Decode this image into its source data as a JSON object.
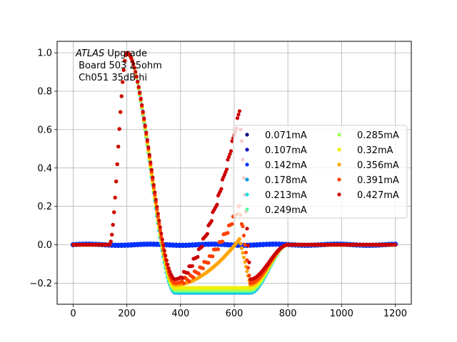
{
  "chart_data": {
    "type": "scatter",
    "title": "",
    "xlabel": "",
    "ylabel": "",
    "xlim": [
      -60,
      1260
    ],
    "ylim": [
      -0.31,
      1.06
    ],
    "grid": true,
    "legend_position": "center-right",
    "legend_columns": 2,
    "annotation": {
      "italic": "ATLAS",
      "line1_rest": " Upgrade",
      "line2": " Board 503 25ohm",
      "line3": " Ch051 35dB hi"
    },
    "x_ticks": [
      0,
      200,
      400,
      600,
      800,
      1000,
      1200
    ],
    "x_tick_labels": [
      "0",
      "200",
      "400",
      "600",
      "800",
      "1000",
      "1200"
    ],
    "y_ticks": [
      -0.2,
      0.0,
      0.2,
      0.4,
      0.6,
      0.8,
      1.0
    ],
    "y_tick_labels": [
      "−0.2",
      "0.0",
      "0.2",
      "0.4",
      "0.6",
      "0.8",
      "1.0"
    ],
    "series": [
      {
        "name": "0.071mA",
        "color": "#00007f",
        "kind": "flat",
        "bump": 0.0,
        "trough": 0.0
      },
      {
        "name": "0.107mA",
        "color": "#0000c8",
        "kind": "flat",
        "bump": 0.0,
        "trough": 0.0
      },
      {
        "name": "0.142mA",
        "color": "#0032ff",
        "kind": "flat",
        "bump": 0.0,
        "trough": 0.0
      },
      {
        "name": "0.178mA",
        "color": "#009ce6",
        "kind": "pulse",
        "bump": 0.0,
        "trough": -0.25
      },
      {
        "name": "0.213mA",
        "color": "#12e0e0",
        "kind": "pulse",
        "bump": 0.0,
        "trough": -0.245
      },
      {
        "name": "0.249mA",
        "color": "#5affa0",
        "kind": "pulse",
        "bump": 0.0,
        "trough": -0.24
      },
      {
        "name": "0.285mA",
        "color": "#a0ff5a",
        "kind": "pulse",
        "bump": 0.0,
        "trough": -0.235
      },
      {
        "name": "0.32mA",
        "color": "#f0f000",
        "kind": "pulse",
        "bump": 0.0,
        "trough": -0.225
      },
      {
        "name": "0.356mA",
        "color": "#ffa500",
        "kind": "pulse",
        "bump": 0.03,
        "trough": -0.21
      },
      {
        "name": "0.391mA",
        "color": "#ff4000",
        "kind": "pulse",
        "bump": 0.2,
        "trough": -0.2
      },
      {
        "name": "0.427mA",
        "color": "#cc0000",
        "kind": "pulse",
        "bump": 0.7,
        "trough": -0.18
      }
    ]
  }
}
